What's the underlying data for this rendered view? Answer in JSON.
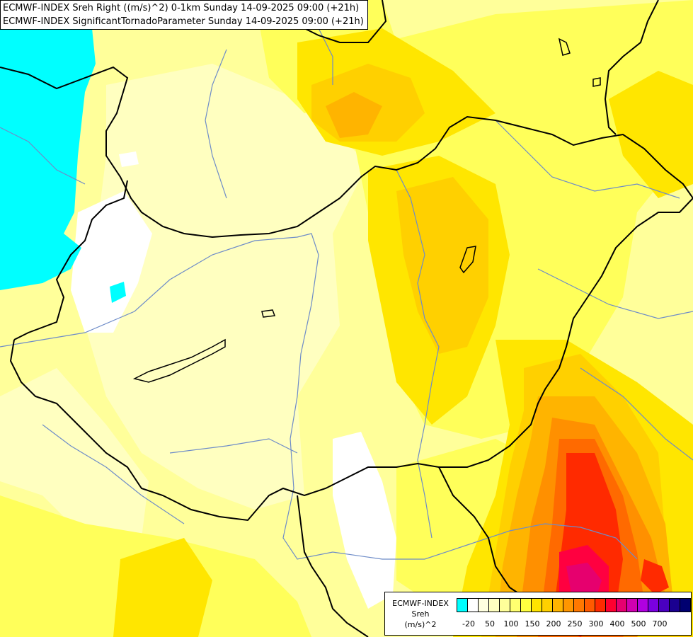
{
  "title": {
    "line1": "ECMWF-INDEX Sreh Right ((m/s)^2) 0-1km Sunday 14-09-2025 09:00 (+21h)",
    "line2": "ECMWF-INDEX SignificantTornadoParameter Sunday 14-09-2025 09:00 (+21h)"
  },
  "legend": {
    "line1": "ECMWF-INDEX",
    "line2": "Sreh",
    "line3": "(m/s)^2",
    "colors": [
      "#00ffff",
      "#ffffff",
      "#ffffe0",
      "#ffffc0",
      "#ffff9a",
      "#ffff70",
      "#ffff40",
      "#ffe400",
      "#ffd000",
      "#ffb400",
      "#ff9600",
      "#ff7800",
      "#ff5a00",
      "#ff2a00",
      "#ff0030",
      "#e60070",
      "#d000b0",
      "#b000e0",
      "#7a00e0",
      "#4a00c0",
      "#1a0090",
      "#000070"
    ],
    "ticks": [
      "-20",
      "50",
      "100",
      "150",
      "200",
      "250",
      "300",
      "400",
      "500",
      "700"
    ]
  },
  "colors": {
    "cyan": "#00ffff",
    "white": "#ffffff",
    "pale_yellow": "#ffffc0",
    "light_yellow": "#ffff9a",
    "yellow": "#ffff5a",
    "bright_yellow": "#ffe600",
    "gold": "#ffd000",
    "orange_yellow": "#ffb400",
    "orange": "#ff9000",
    "dark_orange": "#ff6a00",
    "red": "#ff2a00",
    "crimson": "#ff0040",
    "magenta": "#e6006e",
    "border": "#000000",
    "river": "#6e8cc8"
  }
}
